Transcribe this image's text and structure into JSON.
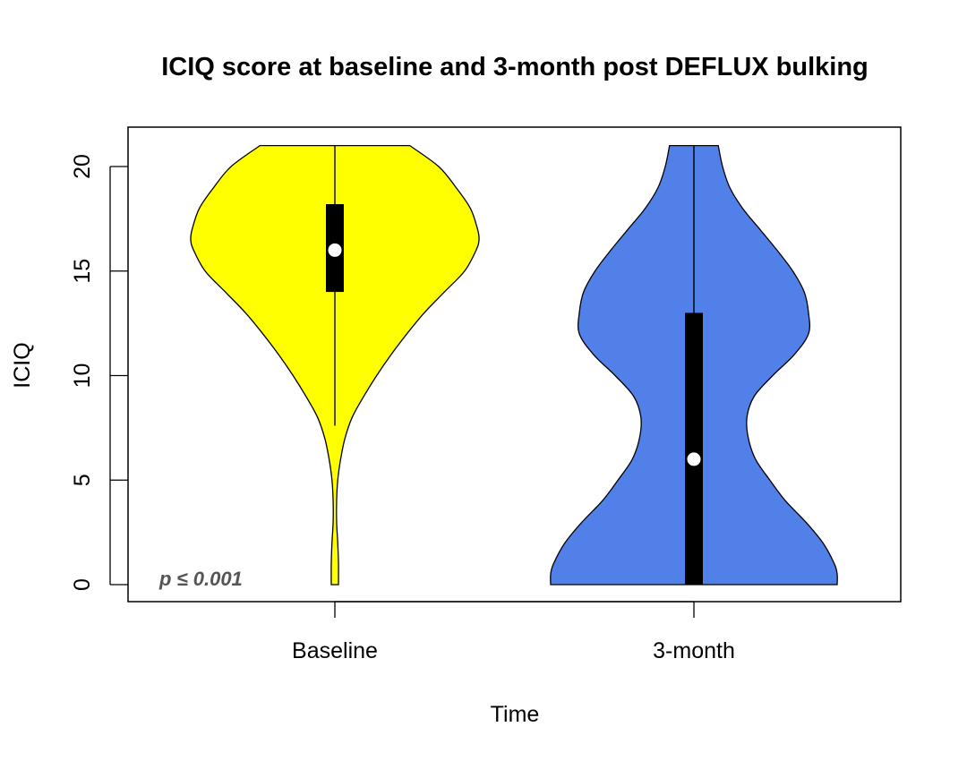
{
  "chart_data": {
    "type": "violin",
    "title": "ICIQ score at baseline and 3-month post DEFLUX bulking",
    "xlabel": "Time",
    "ylabel": "ICIQ",
    "ylim": [
      -0.8,
      21.9
    ],
    "yticks": [
      0,
      5,
      10,
      15,
      20
    ],
    "categories": [
      "Baseline",
      "3-month"
    ],
    "annotation": "p ≤ 0.001",
    "grid": false,
    "series": [
      {
        "category": "Baseline",
        "color": "#ffff00",
        "range": [
          0,
          21
        ],
        "q1": 14,
        "q3": 18.2,
        "median": 16,
        "whisker_low": 7.6,
        "whisker_high": 21,
        "density_profile": [
          [
            0,
            0.025
          ],
          [
            1,
            0.025
          ],
          [
            2,
            0.02
          ],
          [
            3,
            0.012
          ],
          [
            4,
            0.012
          ],
          [
            5,
            0.02
          ],
          [
            6,
            0.04
          ],
          [
            7,
            0.07
          ],
          [
            8,
            0.12
          ],
          [
            9,
            0.2
          ],
          [
            10,
            0.29
          ],
          [
            11,
            0.39
          ],
          [
            12,
            0.5
          ],
          [
            13,
            0.62
          ],
          [
            14,
            0.76
          ],
          [
            15,
            0.9
          ],
          [
            16,
            0.98
          ],
          [
            16.5,
            1.0
          ],
          [
            17,
            0.99
          ],
          [
            18,
            0.94
          ],
          [
            19,
            0.84
          ],
          [
            20,
            0.72
          ],
          [
            21,
            0.52
          ]
        ]
      },
      {
        "category": "3-month",
        "color": "#5280e9",
        "range": [
          0,
          21
        ],
        "q1": 0,
        "q3": 13,
        "median": 6,
        "whisker_low": 0,
        "whisker_high": 21,
        "density_profile": [
          [
            0,
            1.0
          ],
          [
            0.5,
            1.0
          ],
          [
            1,
            0.98
          ],
          [
            2,
            0.9
          ],
          [
            3,
            0.78
          ],
          [
            4,
            0.64
          ],
          [
            5,
            0.53
          ],
          [
            6,
            0.43
          ],
          [
            7,
            0.38
          ],
          [
            8,
            0.37
          ],
          [
            9,
            0.42
          ],
          [
            10,
            0.55
          ],
          [
            11,
            0.7
          ],
          [
            12,
            0.8
          ],
          [
            13,
            0.8
          ],
          [
            14,
            0.77
          ],
          [
            15,
            0.69
          ],
          [
            16,
            0.58
          ],
          [
            17,
            0.46
          ],
          [
            18,
            0.34
          ],
          [
            19,
            0.25
          ],
          [
            20,
            0.2
          ],
          [
            21,
            0.17
          ]
        ]
      }
    ]
  }
}
